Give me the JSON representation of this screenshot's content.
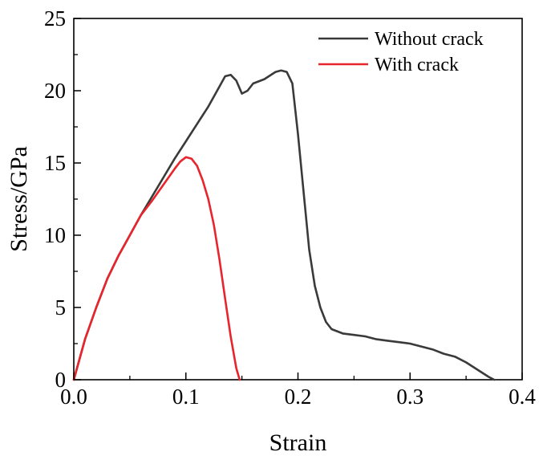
{
  "chart_data": {
    "type": "line",
    "title": "",
    "xlabel": "Strain",
    "ylabel": "Stress/GPa",
    "xlim": [
      0.0,
      0.4
    ],
    "ylim": [
      0,
      25
    ],
    "xticks": [
      "0.0",
      "0.1",
      "0.2",
      "0.3",
      "0.4"
    ],
    "yticks": [
      "0",
      "5",
      "10",
      "15",
      "20",
      "25"
    ],
    "grid": false,
    "legend_position": "top-right",
    "series": [
      {
        "name": "Without crack",
        "color": "#3a3a3a",
        "x": [
          0.0,
          0.01,
          0.02,
          0.03,
          0.04,
          0.05,
          0.06,
          0.07,
          0.08,
          0.09,
          0.1,
          0.11,
          0.12,
          0.13,
          0.135,
          0.14,
          0.145,
          0.15,
          0.155,
          0.16,
          0.17,
          0.18,
          0.185,
          0.19,
          0.195,
          0.2,
          0.205,
          0.21,
          0.215,
          0.22,
          0.225,
          0.23,
          0.24,
          0.25,
          0.26,
          0.27,
          0.28,
          0.29,
          0.3,
          0.31,
          0.32,
          0.33,
          0.34,
          0.35,
          0.36,
          0.37,
          0.375
        ],
        "y": [
          0.0,
          2.8,
          5.0,
          7.0,
          8.6,
          10.0,
          11.4,
          12.7,
          14.0,
          15.3,
          16.5,
          17.7,
          18.9,
          20.3,
          21.0,
          21.1,
          20.7,
          19.8,
          20.0,
          20.5,
          20.8,
          21.3,
          21.4,
          21.3,
          20.5,
          17.0,
          13.0,
          9.0,
          6.5,
          5.0,
          4.0,
          3.5,
          3.2,
          3.1,
          3.0,
          2.8,
          2.7,
          2.6,
          2.5,
          2.3,
          2.1,
          1.8,
          1.6,
          1.2,
          0.7,
          0.2,
          0.0
        ]
      },
      {
        "name": "With crack",
        "color": "#e8242c",
        "x": [
          0.0,
          0.01,
          0.02,
          0.03,
          0.04,
          0.05,
          0.06,
          0.07,
          0.08,
          0.09,
          0.095,
          0.1,
          0.105,
          0.11,
          0.115,
          0.12,
          0.125,
          0.13,
          0.135,
          0.14,
          0.145,
          0.148
        ],
        "y": [
          0.0,
          2.8,
          5.0,
          7.0,
          8.6,
          10.0,
          11.4,
          12.4,
          13.5,
          14.6,
          15.1,
          15.4,
          15.3,
          14.8,
          13.8,
          12.5,
          10.7,
          8.3,
          5.6,
          3.0,
          0.8,
          0.0
        ]
      }
    ]
  }
}
